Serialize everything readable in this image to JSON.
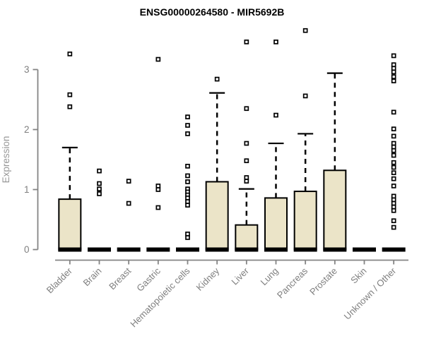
{
  "page": {
    "background": "#ffffff"
  },
  "colors": {
    "box_fill": "#EBE4C8",
    "box_stroke": "#000000",
    "median": "#000000",
    "whisker": "#000000",
    "outlier_stroke": "#000000",
    "outlier_fill": "#ffffff",
    "axis": "#848484",
    "tick_label": "#7f7f7f",
    "title": "#000000"
  },
  "chart_data": {
    "type": "boxplot",
    "title": "ENSG00000264580 - MIR5692B",
    "xlabel": "",
    "ylabel": "Expression",
    "ylim": [
      0,
      3.8
    ],
    "yticks": [
      0,
      1,
      2,
      3
    ],
    "grid": false,
    "legend": false,
    "categories": [
      "Bladder",
      "Brain",
      "Breast",
      "Gastric",
      "Hematopoietic cells",
      "Kidney",
      "Liver",
      "Lung",
      "Pancreas",
      "Prostate",
      "Skin",
      "Unknown / Other"
    ],
    "boxes": [
      {
        "label": "Bladder",
        "q1": 0,
        "median": 0,
        "q3": 0.84,
        "whisker_low": 0,
        "whisker_high": 1.7,
        "outliers": [
          3.26,
          2.58,
          2.38
        ]
      },
      {
        "label": "Brain",
        "q1": 0,
        "median": 0,
        "q3": 0,
        "whisker_low": 0,
        "whisker_high": 0,
        "outliers": [
          1.31,
          1.1,
          1.01,
          0.93
        ]
      },
      {
        "label": "Breast",
        "q1": 0,
        "median": 0,
        "q3": 0,
        "whisker_low": 0,
        "whisker_high": 0,
        "outliers": [
          1.14,
          0.77
        ]
      },
      {
        "label": "Gastric",
        "q1": 0,
        "median": 0,
        "q3": 0,
        "whisker_low": 0,
        "whisker_high": 0,
        "outliers": [
          3.17,
          1.06,
          1.0,
          0.7
        ]
      },
      {
        "label": "Hematopoietic cells",
        "q1": 0,
        "median": 0,
        "q3": 0,
        "whisker_low": 0,
        "whisker_high": 0,
        "outliers": [
          2.21,
          2.07,
          1.93,
          1.39,
          1.23,
          1.13,
          1.01,
          0.96,
          0.91,
          0.86,
          0.8,
          0.74,
          0.26,
          0.2
        ]
      },
      {
        "label": "Kidney",
        "q1": 0,
        "median": 0,
        "q3": 1.13,
        "whisker_low": 0,
        "whisker_high": 2.61,
        "outliers": [
          2.84
        ]
      },
      {
        "label": "Liver",
        "q1": 0,
        "median": 0,
        "q3": 0.41,
        "whisker_low": 0,
        "whisker_high": 1.01,
        "outliers": [
          3.46,
          2.35,
          1.77,
          1.48,
          1.2,
          1.14
        ]
      },
      {
        "label": "Lung",
        "q1": 0,
        "median": 0,
        "q3": 0.86,
        "whisker_low": 0,
        "whisker_high": 1.77,
        "outliers": [
          3.46,
          2.24
        ]
      },
      {
        "label": "Pancreas",
        "q1": 0,
        "median": 0,
        "q3": 0.97,
        "whisker_low": 0,
        "whisker_high": 1.93,
        "outliers": [
          3.65,
          2.56
        ]
      },
      {
        "label": "Prostate",
        "q1": 0,
        "median": 0,
        "q3": 1.32,
        "whisker_low": 0,
        "whisker_high": 2.94,
        "outliers": []
      },
      {
        "label": "Skin",
        "q1": 0,
        "median": 0,
        "q3": 0,
        "whisker_low": 0,
        "whisker_high": 0,
        "outliers": []
      },
      {
        "label": "Unknown / Other",
        "q1": 0,
        "median": 0,
        "q3": 0,
        "whisker_low": 0,
        "whisker_high": 0,
        "outliers": [
          3.23,
          3.08,
          3.02,
          2.96,
          2.88,
          2.81,
          2.29,
          2.01,
          1.89,
          1.77,
          1.71,
          1.65,
          1.57,
          1.45,
          1.37,
          1.28,
          1.18,
          1.06,
          0.89,
          0.83,
          0.77,
          0.71,
          0.65,
          0.48,
          0.37
        ]
      }
    ]
  }
}
